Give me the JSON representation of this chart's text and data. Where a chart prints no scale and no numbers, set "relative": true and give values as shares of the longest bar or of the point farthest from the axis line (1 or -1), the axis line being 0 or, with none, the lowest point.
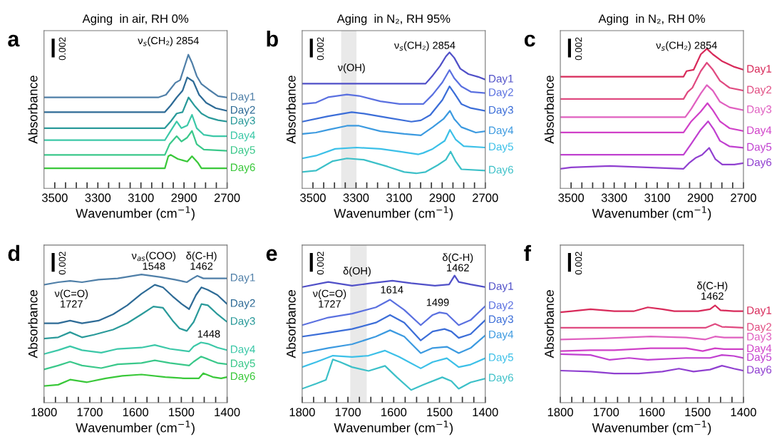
{
  "chart_data": [
    {
      "type": "line",
      "title": "Aging  in air, RH 0%",
      "xlabel": "Wavenumber (cm$^{−1}$)",
      "ylabel": "Absorbance",
      "relative": true,
      "xlim": [
        3550,
        2700
      ],
      "xticks": [
        3500,
        {
          "value": 3450,
          "label": null
        },
        {
          "value": 3400,
          "label": null
        },
        {
          "value": 3350,
          "label": null
        },
        3300,
        {
          "value": 3250,
          "label": null
        },
        {
          "value": 3200,
          "label": null
        },
        {
          "value": 3150,
          "label": null
        },
        3100,
        {
          "value": 3050,
          "label": null
        },
        {
          "value": 3000,
          "label": null
        },
        {
          "value": 2950,
          "label": null
        },
        2900,
        {
          "value": 2850,
          "label": null
        },
        {
          "value": 2800,
          "label": null
        },
        {
          "value": 2750,
          "label": null
        },
        2700
      ],
      "annotations": [
        "a",
        "0.002",
        "ν$_{s}$(CH₂) 2854"
      ],
      "series": [
        {
          "name": "Day1",
          "color": "#4f7fa8",
          "x": [
            3550,
            3020,
            2984,
            2940,
            2918,
            2880,
            2863,
            2841,
            2819,
            2786,
            2742,
            2700
          ],
          "values": [
            0.68,
            0.68,
            0.7,
            0.79,
            0.81,
            1.0,
            0.94,
            0.84,
            0.78,
            0.74,
            0.69,
            0.68
          ]
        },
        {
          "name": "Day2",
          "color": "#2e6b96",
          "x": [
            3550,
            2989,
            2962,
            2934,
            2907,
            2885,
            2857,
            2830,
            2797,
            2753,
            2700
          ],
          "values": [
            0.57,
            0.57,
            0.62,
            0.68,
            0.73,
            0.83,
            0.8,
            0.7,
            0.64,
            0.6,
            0.58
          ]
        },
        {
          "name": "Day3",
          "color": "#2a9a9a",
          "x": [
            3550,
            2989,
            2962,
            2934,
            2907,
            2879,
            2852,
            2819,
            2786,
            2742,
            2700
          ],
          "values": [
            0.45,
            0.45,
            0.5,
            0.56,
            0.57,
            0.68,
            0.62,
            0.56,
            0.53,
            0.51,
            0.5
          ]
        },
        {
          "name": "Day4",
          "color": "#3cc8a8",
          "x": [
            3550,
            2989,
            2962,
            2934,
            2912,
            2885,
            2863,
            2841,
            2808,
            2764,
            2700
          ],
          "values": [
            0.36,
            0.36,
            0.43,
            0.5,
            0.45,
            0.47,
            0.55,
            0.45,
            0.4,
            0.39,
            0.39
          ]
        },
        {
          "name": "Day5",
          "color": "#3ac88a",
          "x": [
            3550,
            2989,
            2967,
            2934,
            2912,
            2885,
            2863,
            2841,
            2808,
            2700
          ],
          "values": [
            0.25,
            0.25,
            0.33,
            0.39,
            0.35,
            0.38,
            0.43,
            0.33,
            0.29,
            0.28
          ]
        },
        {
          "name": "Day6",
          "color": "#3ac83a",
          "x": [
            3550,
            3480,
            3300,
            2989,
            2973,
            2962,
            2929,
            2885,
            2863,
            2835,
            2819,
            2700
          ],
          "values": [
            0.15,
            0.15,
            0.15,
            0.15,
            0.24,
            0.25,
            0.22,
            0.2,
            0.24,
            0.19,
            0.15,
            0.15
          ]
        }
      ]
    },
    {
      "type": "line",
      "title": "Aging  in N₂, RH 95%",
      "xlabel": "Wavenumber (cm$^{−1}$)",
      "ylabel": "Absorbance",
      "relative": true,
      "xlim": [
        3550,
        2700
      ],
      "xticks": [
        3500,
        {
          "value": 3450,
          "label": null
        },
        {
          "value": 3400,
          "label": null
        },
        {
          "value": 3350,
          "label": null
        },
        3300,
        {
          "value": 3250,
          "label": null
        },
        {
          "value": 3200,
          "label": null
        },
        {
          "value": 3150,
          "label": null
        },
        3100,
        {
          "value": 3050,
          "label": null
        },
        {
          "value": 3000,
          "label": null
        },
        {
          "value": 2950,
          "label": null
        },
        2900,
        {
          "value": 2850,
          "label": null
        },
        {
          "value": 2800,
          "label": null
        },
        {
          "value": 2750,
          "label": null
        },
        2700
      ],
      "bands": [
        {
          "axis": "x",
          "from": 3369,
          "to": 3298,
          "color": "#e9e9e9"
        }
      ],
      "annotations": [
        "b",
        "0.002",
        "ν$_{s}$(CH₂) 2854",
        "ν(OH)"
      ],
      "series": [
        {
          "name": "Day1",
          "color": "#5050c8",
          "x": [
            3550,
            2977,
            2944,
            2910,
            2883,
            2866,
            2844,
            2816,
            2778,
            2733,
            2700
          ],
          "values": [
            0.77,
            0.77,
            0.83,
            0.9,
            0.97,
            1.0,
            0.96,
            0.88,
            0.84,
            0.82,
            0.8
          ]
        },
        {
          "name": "Day2",
          "color": "#5a70e0",
          "x": [
            3550,
            3486,
            3430,
            3342,
            3286,
            3187,
            3098,
            2988,
            2944,
            2899,
            2866,
            2844,
            2811,
            2767,
            2700
          ],
          "values": [
            0.62,
            0.63,
            0.67,
            0.69,
            0.68,
            0.64,
            0.62,
            0.62,
            0.69,
            0.78,
            0.87,
            0.81,
            0.75,
            0.71,
            0.7
          ]
        },
        {
          "name": "Day3",
          "color": "#3c6ed8",
          "x": [
            3550,
            3430,
            3320,
            3264,
            3154,
            3043,
            2999,
            2955,
            2899,
            2866,
            2844,
            2811,
            2767,
            2700
          ],
          "values": [
            0.49,
            0.53,
            0.56,
            0.55,
            0.52,
            0.49,
            0.5,
            0.54,
            0.65,
            0.75,
            0.7,
            0.62,
            0.59,
            0.57
          ]
        },
        {
          "name": "Day4",
          "color": "#3c9ae0",
          "x": [
            3550,
            3486,
            3430,
            3342,
            3286,
            3187,
            3076,
            2999,
            2944,
            2894,
            2864,
            2844,
            2811,
            2744,
            2700
          ],
          "values": [
            0.4,
            0.41,
            0.43,
            0.46,
            0.46,
            0.42,
            0.4,
            0.39,
            0.45,
            0.51,
            0.57,
            0.51,
            0.45,
            0.41,
            0.42
          ]
        },
        {
          "name": "Day5",
          "color": "#3cc0e8",
          "x": [
            3550,
            3486,
            3397,
            3298,
            3187,
            3098,
            3010,
            2988,
            2944,
            2888,
            2864,
            2838,
            2800,
            2700
          ],
          "values": [
            0.22,
            0.24,
            0.29,
            0.3,
            0.29,
            0.27,
            0.25,
            0.26,
            0.29,
            0.35,
            0.43,
            0.36,
            0.31,
            0.3
          ]
        },
        {
          "name": "Day6",
          "color": "#3cc0c8",
          "x": [
            3550,
            3486,
            3408,
            3342,
            3264,
            3154,
            3076,
            3021,
            2977,
            2921,
            2883,
            2861,
            2838,
            2811,
            2700
          ],
          "values": [
            0.12,
            0.13,
            0.2,
            0.22,
            0.21,
            0.16,
            0.12,
            0.11,
            0.12,
            0.17,
            0.21,
            0.27,
            0.2,
            0.14,
            0.13
          ]
        }
      ]
    },
    {
      "type": "line",
      "title": "Aging  in N₂, RH 0%",
      "xlabel": "Wavenumber (cm$^{−1}$)",
      "ylabel": "Absorbance",
      "relative": true,
      "xlim": [
        3550,
        2700
      ],
      "xticks": [
        3500,
        {
          "value": 3450,
          "label": null
        },
        {
          "value": 3400,
          "label": null
        },
        {
          "value": 3350,
          "label": null
        },
        3300,
        {
          "value": 3250,
          "label": null
        },
        {
          "value": 3200,
          "label": null
        },
        {
          "value": 3150,
          "label": null
        },
        3100,
        {
          "value": 3050,
          "label": null
        },
        {
          "value": 3000,
          "label": null
        },
        {
          "value": 2950,
          "label": null
        },
        2900,
        {
          "value": 2850,
          "label": null
        },
        {
          "value": 2800,
          "label": null
        },
        {
          "value": 2750,
          "label": null
        },
        2700
      ],
      "annotations": [
        "c",
        "0.002",
        "ν$_{s}$(CH₂) 2854"
      ],
      "series": [
        {
          "name": "Day1",
          "color": "#d82a5a",
          "x": [
            3550,
            2978,
            2964,
            2931,
            2898,
            2870,
            2842,
            2798,
            2742,
            2700
          ],
          "values": [
            0.8,
            0.8,
            0.84,
            0.85,
            0.96,
            1.0,
            0.96,
            0.91,
            0.87,
            0.85
          ]
        },
        {
          "name": "Day2",
          "color": "#e04a80",
          "x": [
            3550,
            2978,
            2959,
            2937,
            2898,
            2870,
            2842,
            2809,
            2764,
            2700
          ],
          "values": [
            0.64,
            0.64,
            0.69,
            0.72,
            0.84,
            0.9,
            0.85,
            0.77,
            0.72,
            0.7
          ]
        },
        {
          "name": "Day3",
          "color": "#e060c0",
          "x": [
            3550,
            2970,
            2942,
            2898,
            2870,
            2842,
            2809,
            2764,
            2700
          ],
          "values": [
            0.51,
            0.51,
            0.57,
            0.68,
            0.74,
            0.7,
            0.62,
            0.58,
            0.56
          ]
        },
        {
          "name": "Day4",
          "color": "#d040c8",
          "x": [
            3550,
            2978,
            2942,
            2898,
            2867,
            2842,
            2809,
            2764,
            2700
          ],
          "values": [
            0.4,
            0.4,
            0.48,
            0.55,
            0.61,
            0.56,
            0.48,
            0.43,
            0.41
          ]
        },
        {
          "name": "Day5",
          "color": "#c040d0",
          "x": [
            3550,
            2978,
            2942,
            2898,
            2864,
            2837,
            2809,
            2764,
            2700
          ],
          "values": [
            0.24,
            0.24,
            0.32,
            0.42,
            0.48,
            0.42,
            0.34,
            0.3,
            0.29
          ]
        },
        {
          "name": "Day6",
          "color": "#9040d0",
          "x": [
            3550,
            3500,
            3320,
            2978,
            2953,
            2920,
            2892,
            2859,
            2831,
            2798,
            2742,
            2700
          ],
          "values": [
            0.14,
            0.15,
            0.16,
            0.14,
            0.18,
            0.22,
            0.24,
            0.29,
            0.21,
            0.17,
            0.17,
            0.18
          ]
        }
      ]
    },
    {
      "type": "line",
      "xlabel": "Wavenumber (cm$^{−1}$)",
      "ylabel": "Absorbance",
      "relative": true,
      "xlim": [
        1800,
        1400
      ],
      "xticks": [
        1800,
        {
          "value": 1775,
          "label": null
        },
        {
          "value": 1750,
          "label": null
        },
        {
          "value": 1725,
          "label": null
        },
        1700,
        {
          "value": 1675,
          "label": null
        },
        {
          "value": 1650,
          "label": null
        },
        {
          "value": 1625,
          "label": null
        },
        1600,
        {
          "value": 1575,
          "label": null
        },
        {
          "value": 1550,
          "label": null
        },
        {
          "value": 1525,
          "label": null
        },
        1500,
        {
          "value": 1475,
          "label": null
        },
        {
          "value": 1450,
          "label": null
        },
        {
          "value": 1425,
          "label": null
        },
        1400
      ],
      "annotations": [
        "d",
        "0.002",
        "ν$_{as}$(COO)\n1548",
        "δ(C-H)\n1462",
        "ν(C=O)\n1727",
        "1448"
      ],
      "series": [
        {
          "name": "Day1",
          "color": "#4f7fa8",
          "x": [
            1800,
            1769,
            1743,
            1717,
            1681,
            1639,
            1587,
            1545,
            1514,
            1488,
            1475,
            1465,
            1452,
            1431,
            1400
          ],
          "values": [
            0.92,
            0.94,
            0.95,
            0.94,
            0.96,
            0.97,
            1.0,
            0.98,
            0.96,
            0.94,
            0.97,
            0.99,
            0.97,
            0.97,
            0.97
          ]
        },
        {
          "name": "Day2",
          "color": "#2e6b96",
          "x": [
            1800,
            1769,
            1743,
            1717,
            1681,
            1649,
            1618,
            1587,
            1558,
            1540,
            1519,
            1499,
            1483,
            1468,
            1456,
            1442,
            1421,
            1400
          ],
          "values": [
            0.62,
            0.62,
            0.64,
            0.62,
            0.64,
            0.69,
            0.76,
            0.85,
            0.92,
            0.9,
            0.83,
            0.77,
            0.73,
            0.84,
            0.9,
            0.88,
            0.84,
            0.77
          ]
        },
        {
          "name": "Day3",
          "color": "#2a9a9a",
          "x": [
            1800,
            1769,
            1743,
            1717,
            1691,
            1649,
            1618,
            1587,
            1561,
            1540,
            1519,
            1504,
            1488,
            1473,
            1456,
            1442,
            1421,
            1400
          ],
          "values": [
            0.5,
            0.51,
            0.55,
            0.51,
            0.53,
            0.57,
            0.62,
            0.69,
            0.75,
            0.74,
            0.64,
            0.58,
            0.56,
            0.63,
            0.77,
            0.76,
            0.69,
            0.63
          ]
        },
        {
          "name": "Day4",
          "color": "#3cc8a8",
          "x": [
            1800,
            1769,
            1743,
            1717,
            1675,
            1639,
            1587,
            1558,
            1525,
            1483,
            1473,
            1457,
            1442,
            1421,
            1400
          ],
          "values": [
            0.38,
            0.41,
            0.44,
            0.41,
            0.39,
            0.42,
            0.43,
            0.45,
            0.42,
            0.4,
            0.44,
            0.47,
            0.46,
            0.43,
            0.41
          ]
        },
        {
          "name": "Day5",
          "color": "#3ac88a",
          "x": [
            1800,
            1769,
            1743,
            1717,
            1675,
            1639,
            1587,
            1558,
            1525,
            1483,
            1473,
            1457,
            1442,
            1421,
            1400
          ],
          "values": [
            0.26,
            0.29,
            0.32,
            0.29,
            0.27,
            0.3,
            0.31,
            0.33,
            0.31,
            0.29,
            0.32,
            0.36,
            0.34,
            0.31,
            0.3
          ]
        },
        {
          "name": "Day6",
          "color": "#3ac83a",
          "x": [
            1800,
            1769,
            1743,
            1706,
            1665,
            1629,
            1587,
            1535,
            1494,
            1462,
            1452,
            1431,
            1413,
            1400
          ],
          "values": [
            0.13,
            0.14,
            0.18,
            0.16,
            0.19,
            0.21,
            0.22,
            0.2,
            0.19,
            0.19,
            0.23,
            0.2,
            0.19,
            0.2
          ]
        }
      ]
    },
    {
      "type": "line",
      "xlabel": "Wavenumber (cm$^{−1}$)",
      "ylabel": "Absorbance",
      "relative": true,
      "xlim": [
        1800,
        1400
      ],
      "xticks": [
        1800,
        {
          "value": 1775,
          "label": null
        },
        {
          "value": 1750,
          "label": null
        },
        {
          "value": 1725,
          "label": null
        },
        1700,
        {
          "value": 1675,
          "label": null
        },
        {
          "value": 1650,
          "label": null
        },
        {
          "value": 1625,
          "label": null
        },
        1600,
        {
          "value": 1575,
          "label": null
        },
        {
          "value": 1550,
          "label": null
        },
        {
          "value": 1525,
          "label": null
        },
        1500,
        {
          "value": 1475,
          "label": null
        },
        {
          "value": 1450,
          "label": null
        },
        {
          "value": 1425,
          "label": null
        },
        1400
      ],
      "bands": [
        {
          "axis": "x",
          "from": 1695,
          "to": 1659,
          "color": "#e9e9e9"
        }
      ],
      "annotations": [
        "e",
        "0.002",
        "δ(OH)",
        "ν(C=O)\n1727",
        "1614",
        "1499",
        "δ(C-H)\n1462"
      ],
      "series": [
        {
          "name": "Day1",
          "color": "#5050c8",
          "x": [
            1800,
            1743,
            1691,
            1650,
            1603,
            1562,
            1510,
            1479,
            1467,
            1458,
            1432,
            1400
          ],
          "values": [
            0.91,
            0.95,
            0.92,
            0.94,
            0.96,
            0.94,
            0.92,
            0.93,
            1.0,
            0.95,
            0.93,
            0.91
          ]
        },
        {
          "name": "Day2",
          "color": "#5a70e0",
          "x": [
            1800,
            1743,
            1691,
            1639,
            1608,
            1577,
            1541,
            1515,
            1500,
            1484,
            1458,
            1432,
            1400
          ],
          "values": [
            0.61,
            0.67,
            0.7,
            0.75,
            0.81,
            0.73,
            0.61,
            0.69,
            0.71,
            0.7,
            0.61,
            0.65,
            0.76
          ]
        },
        {
          "name": "Day3",
          "color": "#3c6ed8",
          "x": [
            1800,
            1743,
            1691,
            1639,
            1608,
            1577,
            1541,
            1515,
            1489,
            1474,
            1458,
            1432,
            1400
          ],
          "values": [
            0.52,
            0.55,
            0.58,
            0.63,
            0.69,
            0.63,
            0.49,
            0.56,
            0.58,
            0.56,
            0.51,
            0.54,
            0.65
          ]
        },
        {
          "name": "Day4",
          "color": "#3c9ae0",
          "x": [
            1800,
            1743,
            1691,
            1639,
            1608,
            1577,
            1541,
            1515,
            1484,
            1458,
            1432,
            1400
          ],
          "values": [
            0.39,
            0.43,
            0.46,
            0.52,
            0.57,
            0.52,
            0.39,
            0.43,
            0.44,
            0.39,
            0.43,
            0.53
          ]
        },
        {
          "name": "Day5",
          "color": "#3cc0e8",
          "x": [
            1800,
            1769,
            1733,
            1691,
            1655,
            1619,
            1588,
            1541,
            1515,
            1484,
            1458,
            1432,
            1400
          ],
          "values": [
            0.28,
            0.32,
            0.37,
            0.36,
            0.37,
            0.41,
            0.36,
            0.27,
            0.32,
            0.35,
            0.28,
            0.3,
            0.35
          ]
        },
        {
          "name": "Day6",
          "color": "#3cc0c8",
          "x": [
            1800,
            1769,
            1748,
            1733,
            1717,
            1691,
            1655,
            1619,
            1593,
            1562,
            1536,
            1494,
            1474,
            1458,
            1432,
            1400
          ],
          "values": [
            0.11,
            0.15,
            0.18,
            0.34,
            0.32,
            0.28,
            0.25,
            0.29,
            0.2,
            0.1,
            0.14,
            0.2,
            0.17,
            0.11,
            0.16,
            0.19
          ]
        }
      ]
    },
    {
      "type": "line",
      "xlabel": "Wavenumber (cm$^{−1}$)",
      "ylabel": "Absorbance",
      "relative": true,
      "xlim": [
        1800,
        1400
      ],
      "xticks": [
        1800,
        {
          "value": 1775,
          "label": null
        },
        {
          "value": 1750,
          "label": null
        },
        {
          "value": 1725,
          "label": null
        },
        1700,
        {
          "value": 1675,
          "label": null
        },
        {
          "value": 1650,
          "label": null
        },
        {
          "value": 1625,
          "label": null
        },
        1600,
        {
          "value": 1575,
          "label": null
        },
        {
          "value": 1550,
          "label": null
        },
        {
          "value": 1525,
          "label": null
        },
        1500,
        {
          "value": 1475,
          "label": null
        },
        {
          "value": 1450,
          "label": null
        },
        {
          "value": 1425,
          "label": null
        },
        1400
      ],
      "annotations": [
        "f",
        "0.002",
        "δ(C-H)\n1462"
      ],
      "series": [
        {
          "name": "Day1",
          "color": "#d82a5a",
          "x": [
            1800,
            1775,
            1734,
            1682,
            1640,
            1609,
            1577,
            1551,
            1499,
            1473,
            1462,
            1450,
            1421,
            1400
          ],
          "values": [
            0.93,
            0.94,
            0.96,
            0.94,
            0.94,
            0.98,
            0.96,
            0.94,
            0.94,
            0.96,
            1.0,
            0.95,
            0.94,
            0.94
          ]
        },
        {
          "name": "Day2",
          "color": "#e04a80",
          "x": [
            1800,
            1682,
            1577,
            1483,
            1462,
            1447,
            1400
          ],
          "values": [
            0.77,
            0.77,
            0.77,
            0.77,
            0.81,
            0.78,
            0.77
          ]
        },
        {
          "name": "Day3",
          "color": "#e060c0",
          "x": [
            1800,
            1708,
            1603,
            1525,
            1483,
            1462,
            1442,
            1400
          ],
          "values": [
            0.65,
            0.66,
            0.68,
            0.67,
            0.65,
            0.68,
            0.67,
            0.67
          ]
        },
        {
          "name": "Day4",
          "color": "#d040c8",
          "x": [
            1800,
            1734,
            1682,
            1603,
            1525,
            1489,
            1462,
            1442,
            1400
          ],
          "values": [
            0.53,
            0.54,
            0.54,
            0.56,
            0.56,
            0.53,
            0.56,
            0.55,
            0.55
          ]
        },
        {
          "name": "Day5",
          "color": "#c040d0",
          "x": [
            1800,
            1734,
            1692,
            1650,
            1609,
            1525,
            1473,
            1447,
            1421,
            1400
          ],
          "values": [
            0.5,
            0.49,
            0.44,
            0.46,
            0.44,
            0.46,
            0.46,
            0.49,
            0.48,
            0.46
          ]
        },
        {
          "name": "Day6",
          "color": "#9040d0",
          "x": [
            1800,
            1734,
            1682,
            1629,
            1577,
            1541,
            1509,
            1473,
            1447,
            1421,
            1400
          ],
          "values": [
            0.33,
            0.32,
            0.3,
            0.3,
            0.32,
            0.35,
            0.32,
            0.34,
            0.38,
            0.35,
            0.33
          ]
        }
      ]
    }
  ]
}
